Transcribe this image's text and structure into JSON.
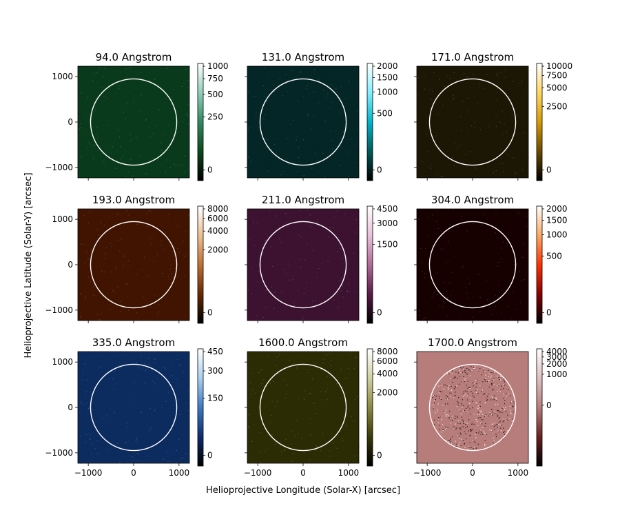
{
  "figure": {
    "xlabel": "Helioprojective Longitude (Solar-X) [arcsec]",
    "ylabel": "Helioprojective Latitude (Solar-Y) [arcsec]"
  },
  "chart_data": [
    {
      "type": "heatmap",
      "title": "94.0 Angstrom",
      "image_color": "#0a3a1c",
      "limb_circle": {
        "center": [
          0,
          0
        ],
        "radius": 950
      },
      "colorbar": {
        "ticks": [
          "0",
          "250",
          "500",
          "750",
          "1000"
        ],
        "colors": [
          "#000000",
          "#0b4a1c",
          "#2e8a60",
          "#8fd0b8",
          "#ffffff"
        ],
        "zero_frac": 0.07
      },
      "xlim": [
        -1230,
        1230
      ],
      "ylim": [
        -1230,
        1230
      ],
      "xticks": [
        -1000,
        0,
        1000
      ],
      "yticks": [
        -1000,
        0,
        1000
      ],
      "show_xticklabels": false,
      "show_yticklabels": true
    },
    {
      "type": "heatmap",
      "title": "131.0 Angstrom",
      "image_color": "#042626",
      "limb_circle": {
        "center": [
          0,
          0
        ],
        "radius": 950
      },
      "colorbar": {
        "ticks": [
          "0",
          "500",
          "1000",
          "1500",
          "2000"
        ],
        "colors": [
          "#000000",
          "#005a5a",
          "#00b4c8",
          "#80f0ff",
          "#ffffff"
        ],
        "zero_frac": 0.07
      },
      "xlim": [
        -1230,
        1230
      ],
      "ylim": [
        -1230,
        1230
      ],
      "xticks": [
        -1000,
        0,
        1000
      ],
      "yticks": [
        -1000,
        0,
        1000
      ],
      "show_xticklabels": false,
      "show_yticklabels": false
    },
    {
      "type": "heatmap",
      "title": "171.0 Angstrom",
      "image_color": "#1c1604",
      "limb_circle": {
        "center": [
          0,
          0
        ],
        "radius": 950
      },
      "colorbar": {
        "ticks": [
          "0",
          "2500",
          "5000",
          "7500",
          "10000"
        ],
        "colors": [
          "#000000",
          "#6a4a00",
          "#d89a00",
          "#ffd860",
          "#ffffff"
        ],
        "zero_frac": 0.07
      },
      "xlim": [
        -1230,
        1230
      ],
      "ylim": [
        -1230,
        1230
      ],
      "xticks": [
        -1000,
        0,
        1000
      ],
      "yticks": [
        -1000,
        0,
        1000
      ],
      "show_xticklabels": false,
      "show_yticklabels": false
    },
    {
      "type": "heatmap",
      "title": "193.0 Angstrom",
      "image_color": "#401400",
      "limb_circle": {
        "center": [
          0,
          0
        ],
        "radius": 950
      },
      "colorbar": {
        "ticks": [
          "0",
          "2000",
          "4000",
          "6000",
          "8000"
        ],
        "colors": [
          "#000000",
          "#6a2800",
          "#c07030",
          "#f0c090",
          "#ffffff"
        ],
        "zero_frac": 0.07
      },
      "xlim": [
        -1230,
        1230
      ],
      "ylim": [
        -1230,
        1230
      ],
      "xticks": [
        -1000,
        0,
        1000
      ],
      "yticks": [
        -1000,
        0,
        1000
      ],
      "show_xticklabels": false,
      "show_yticklabels": true
    },
    {
      "type": "heatmap",
      "title": "211.0 Angstrom",
      "image_color": "#3c1230",
      "limb_circle": {
        "center": [
          0,
          0
        ],
        "radius": 950
      },
      "colorbar": {
        "ticks": [
          "0",
          "1500",
          "3000",
          "4500"
        ],
        "colors": [
          "#000000",
          "#5a1a48",
          "#b06a98",
          "#e8c0d8",
          "#ffffff"
        ],
        "zero_frac": 0.07
      },
      "xlim": [
        -1230,
        1230
      ],
      "ylim": [
        -1230,
        1230
      ],
      "xticks": [
        -1000,
        0,
        1000
      ],
      "yticks": [
        -1000,
        0,
        1000
      ],
      "show_xticklabels": false,
      "show_yticklabels": false
    },
    {
      "type": "heatmap",
      "title": "304.0 Angstrom",
      "image_color": "#160000",
      "limb_circle": {
        "center": [
          0,
          0
        ],
        "radius": 950
      },
      "colorbar": {
        "ticks": [
          "0",
          "500",
          "1000",
          "1500",
          "2000"
        ],
        "colors": [
          "#000000",
          "#8a0000",
          "#ff3000",
          "#ffa860",
          "#ffffff"
        ],
        "zero_frac": 0.07
      },
      "xlim": [
        -1230,
        1230
      ],
      "ylim": [
        -1230,
        1230
      ],
      "xticks": [
        -1000,
        0,
        1000
      ],
      "yticks": [
        -1000,
        0,
        1000
      ],
      "show_xticklabels": false,
      "show_yticklabels": false
    },
    {
      "type": "heatmap",
      "title": "335.0 Angstrom",
      "image_color": "#0c2c60",
      "limb_circle": {
        "center": [
          0,
          0
        ],
        "radius": 950
      },
      "colorbar": {
        "ticks": [
          "0",
          "150",
          "300",
          "450"
        ],
        "colors": [
          "#000000",
          "#0c2c70",
          "#3a7ac8",
          "#a8d0f0",
          "#ffffff"
        ],
        "zero_frac": 0.07
      },
      "xlim": [
        -1230,
        1230
      ],
      "ylim": [
        -1230,
        1230
      ],
      "xticks": [
        -1000,
        0,
        1000
      ],
      "yticks": [
        -1000,
        0,
        1000
      ],
      "show_xticklabels": true,
      "show_yticklabels": true
    },
    {
      "type": "heatmap",
      "title": "1600.0 Angstrom",
      "image_color": "#2c2c04",
      "limb_circle": {
        "center": [
          0,
          0
        ],
        "radius": 950
      },
      "colorbar": {
        "ticks": [
          "0",
          "2000",
          "4000",
          "6000",
          "8000"
        ],
        "colors": [
          "#000000",
          "#3a3a08",
          "#8a8a40",
          "#d0d0a0",
          "#ffffff"
        ],
        "zero_frac": 0.07
      },
      "xlim": [
        -1230,
        1230
      ],
      "ylim": [
        -1230,
        1230
      ],
      "xticks": [
        -1000,
        0,
        1000
      ],
      "yticks": [
        -1000,
        0,
        1000
      ],
      "show_xticklabels": true,
      "show_yticklabels": false
    },
    {
      "type": "heatmap",
      "title": "1700.0 Angstrom",
      "image_color": "#b77d7b",
      "limb_circle": {
        "center": [
          0,
          0
        ],
        "radius": 950
      },
      "colorbar": {
        "ticks": [
          "0",
          "1000",
          "2000",
          "3000",
          "4000"
        ],
        "colors": [
          "#000000",
          "#6a2020",
          "#b87c7c",
          "#e0c0c0",
          "#ffffff"
        ],
        "zero_frac": 0.52
      },
      "xlim": [
        -1230,
        1230
      ],
      "ylim": [
        -1230,
        1230
      ],
      "xticks": [
        -1000,
        0,
        1000
      ],
      "yticks": [
        -1000,
        0,
        1000
      ],
      "show_xticklabels": true,
      "show_yticklabels": false
    }
  ]
}
